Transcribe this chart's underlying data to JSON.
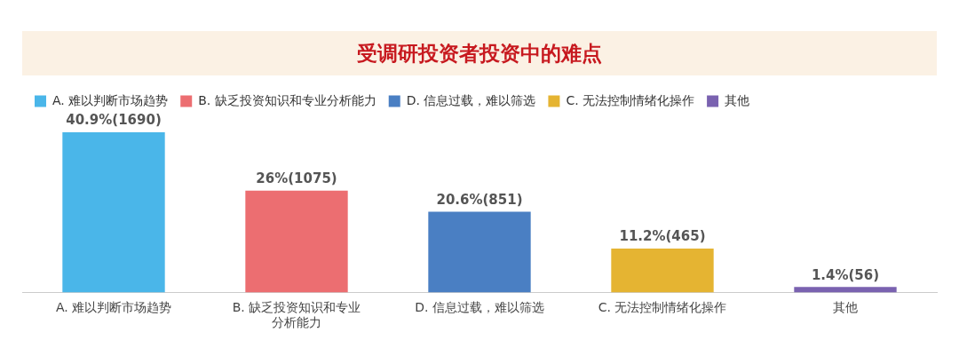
{
  "chart_data": {
    "type": "bar",
    "title": "受调研投资者投资中的难点",
    "categories": [
      "A. 难以判断市场趋势",
      "B. 缺乏投资知识和专业分析能力",
      "D. 信息过载，难以筛选",
      "C. 无法控制情绪化操作",
      "其他"
    ],
    "series": [
      {
        "name": "A. 难以判断市场趋势",
        "color": "#4ab6e9",
        "values": [
          40.9,
          null,
          null,
          null,
          null
        ],
        "value_labels": [
          "40.9%(1690)",
          null,
          null,
          null,
          null
        ]
      },
      {
        "name": "B. 缺乏投资知识和专业分析能力",
        "color": "#ec6e71",
        "values": [
          null,
          26,
          null,
          null,
          null
        ],
        "value_labels": [
          null,
          "26%(1075)",
          null,
          null,
          null
        ]
      },
      {
        "name": "D. 信息过载，难以筛选",
        "color": "#4a7fc3",
        "values": [
          null,
          null,
          20.6,
          null,
          null
        ],
        "value_labels": [
          null,
          null,
          "20.6%(851)",
          null,
          null
        ]
      },
      {
        "name": "C. 无法控制情绪化操作",
        "color": "#e5b432",
        "values": [
          null,
          null,
          null,
          11.2,
          null
        ],
        "value_labels": [
          null,
          null,
          null,
          "11.2%(465)",
          null
        ]
      },
      {
        "name": "其他",
        "color": "#7a62b0",
        "values": [
          null,
          null,
          null,
          null,
          1.4
        ],
        "value_labels": [
          null,
          null,
          null,
          null,
          "1.4%(56)"
        ]
      }
    ],
    "legend": "top left",
    "grid": false
  }
}
